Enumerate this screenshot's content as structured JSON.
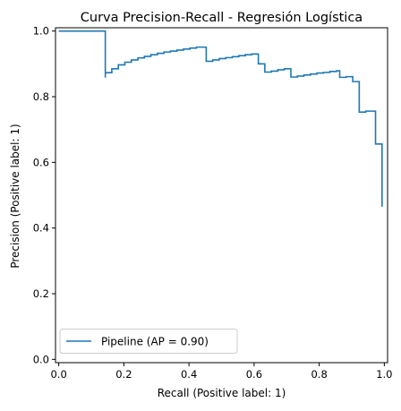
{
  "chart_data": {
    "type": "line",
    "title": "Curva Precision-Recall - Regresión Logística",
    "xlabel": "Recall (Positive label: 1)",
    "ylabel": "Precision (Positive label: 1)",
    "xlim": [
      -0.01,
      1.01
    ],
    "ylim": [
      -0.01,
      1.01
    ],
    "grid": false,
    "legend_position": "lower-left",
    "x_ticks": [
      "0.0",
      "0.2",
      "0.4",
      "0.6",
      "0.8",
      "1.0"
    ],
    "y_ticks": [
      "0.0",
      "0.2",
      "0.4",
      "0.6",
      "0.8",
      "1.0"
    ],
    "series": [
      {
        "name": "Pipeline (AP = 0.90)",
        "color": "#1f77b4",
        "drawstyle": "steps-post",
        "x": [
          0.0,
          0.143,
          0.143,
          0.143,
          0.163,
          0.183,
          0.203,
          0.223,
          0.243,
          0.263,
          0.283,
          0.303,
          0.323,
          0.343,
          0.363,
          0.383,
          0.403,
          0.423,
          0.453,
          0.453,
          0.473,
          0.493,
          0.513,
          0.533,
          0.553,
          0.573,
          0.593,
          0.613,
          0.613,
          0.633,
          0.633,
          0.653,
          0.673,
          0.693,
          0.713,
          0.713,
          0.733,
          0.753,
          0.773,
          0.793,
          0.813,
          0.833,
          0.853,
          0.863,
          0.863,
          0.883,
          0.903,
          0.923,
          0.923,
          0.943,
          0.963,
          0.973,
          0.973,
          0.993,
          0.993
        ],
        "y": [
          1.0,
          1.0,
          0.858,
          0.873,
          0.885,
          0.897,
          0.905,
          0.912,
          0.918,
          0.923,
          0.928,
          0.932,
          0.936,
          0.939,
          0.942,
          0.945,
          0.948,
          0.951,
          0.951,
          0.908,
          0.912,
          0.916,
          0.919,
          0.922,
          0.925,
          0.928,
          0.93,
          0.93,
          0.9,
          0.9,
          0.875,
          0.878,
          0.882,
          0.885,
          0.885,
          0.86,
          0.863,
          0.866,
          0.869,
          0.872,
          0.874,
          0.877,
          0.879,
          0.879,
          0.859,
          0.861,
          0.846,
          0.846,
          0.753,
          0.756,
          0.756,
          0.756,
          0.656,
          0.656,
          0.465
        ]
      }
    ]
  }
}
